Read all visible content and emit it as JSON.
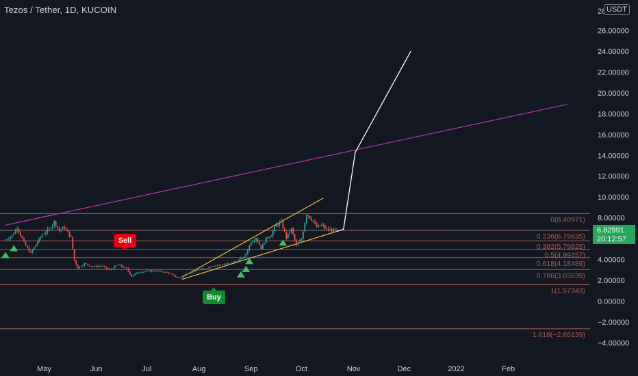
{
  "header": {
    "title": "Tezos / Tether, 1D, KUCOIN",
    "currency": "USDT"
  },
  "price_tag": {
    "price": "6.82991",
    "countdown": "20:12:57"
  },
  "signals": {
    "sell_label": "Sell",
    "buy_label": "Buy"
  },
  "colors": {
    "background": "#131722",
    "up": "#26a69a",
    "down": "#ef5350",
    "grid_label": "#d1d4dc",
    "fib": "#b05a55",
    "trend_purple": "#b53ab5",
    "channel": "#f5c542",
    "projection": "#ffffff",
    "tag_green": "#26a65b",
    "buy_marker": "#3fbf5f"
  },
  "chart_data": {
    "type": "candlestick",
    "title": "Tezos / Tether, 1D, KUCOIN",
    "ylim": [
      -4.7,
      28.5
    ],
    "y_ticks": [
      {
        "value": 26,
        "label": "26.00000"
      },
      {
        "value": 24,
        "label": "24.00000"
      },
      {
        "value": 22,
        "label": "22.00000"
      },
      {
        "value": 20,
        "label": "20.00000"
      },
      {
        "value": 18,
        "label": "18.00000"
      },
      {
        "value": 16,
        "label": "16.00000"
      },
      {
        "value": 14,
        "label": "14.00000"
      },
      {
        "value": 12,
        "label": "12.00000"
      },
      {
        "value": 10,
        "label": "10.00000"
      },
      {
        "value": 8,
        "label": "8.00000"
      },
      {
        "value": 4,
        "label": "4.00000"
      },
      {
        "value": 2,
        "label": "2.00000"
      },
      {
        "value": 0,
        "label": "0.00000"
      },
      {
        "value": -2,
        "label": "−2.00000"
      },
      {
        "value": -4,
        "label": "−4.00000"
      }
    ],
    "y_top_label": "28",
    "x_ticks": [
      {
        "date": "2021-05-01",
        "label": "May"
      },
      {
        "date": "2021-06-01",
        "label": "Jun"
      },
      {
        "date": "2021-07-01",
        "label": "Jul"
      },
      {
        "date": "2021-08-01",
        "label": "Aug"
      },
      {
        "date": "2021-09-01",
        "label": "Sep"
      },
      {
        "date": "2021-10-01",
        "label": "Oct"
      },
      {
        "date": "2021-11-01",
        "label": "Nov"
      },
      {
        "date": "2021-12-01",
        "label": "Dec"
      },
      {
        "date": "2022-01-01",
        "label": "2022"
      },
      {
        "date": "2022-02-01",
        "label": "Feb"
      }
    ],
    "price_series": [
      {
        "date": "2021-04-08",
        "close": 5.9
      },
      {
        "date": "2021-04-12",
        "close": 6.3
      },
      {
        "date": "2021-04-15",
        "close": 7.1
      },
      {
        "date": "2021-04-19",
        "close": 5.6
      },
      {
        "date": "2021-04-23",
        "close": 4.6
      },
      {
        "date": "2021-04-27",
        "close": 5.7
      },
      {
        "date": "2021-04-30",
        "close": 6.4
      },
      {
        "date": "2021-05-04",
        "close": 6.9
      },
      {
        "date": "2021-05-07",
        "close": 7.6
      },
      {
        "date": "2021-05-10",
        "close": 6.8
      },
      {
        "date": "2021-05-13",
        "close": 7.1
      },
      {
        "date": "2021-05-17",
        "close": 6.1
      },
      {
        "date": "2021-05-19",
        "close": 3.9
      },
      {
        "date": "2021-05-21",
        "close": 3.2
      },
      {
        "date": "2021-05-25",
        "close": 3.6
      },
      {
        "date": "2021-05-30",
        "close": 3.3
      },
      {
        "date": "2021-06-04",
        "close": 3.4
      },
      {
        "date": "2021-06-09",
        "close": 3.0
      },
      {
        "date": "2021-06-14",
        "close": 3.5
      },
      {
        "date": "2021-06-19",
        "close": 3.1
      },
      {
        "date": "2021-06-22",
        "close": 2.4
      },
      {
        "date": "2021-06-26",
        "close": 2.8
      },
      {
        "date": "2021-07-02",
        "close": 2.9
      },
      {
        "date": "2021-07-08",
        "close": 2.9
      },
      {
        "date": "2021-07-14",
        "close": 2.7
      },
      {
        "date": "2021-07-20",
        "close": 2.2
      },
      {
        "date": "2021-07-24",
        "close": 2.6
      },
      {
        "date": "2021-07-29",
        "close": 2.9
      },
      {
        "date": "2021-08-04",
        "close": 3.1
      },
      {
        "date": "2021-08-09",
        "close": 3.4
      },
      {
        "date": "2021-08-14",
        "close": 3.5
      },
      {
        "date": "2021-08-19",
        "close": 3.6
      },
      {
        "date": "2021-08-24",
        "close": 3.9
      },
      {
        "date": "2021-08-28",
        "close": 4.2
      },
      {
        "date": "2021-09-01",
        "close": 5.7
      },
      {
        "date": "2021-09-04",
        "close": 6.1
      },
      {
        "date": "2021-09-07",
        "close": 5.1
      },
      {
        "date": "2021-09-10",
        "close": 6.0
      },
      {
        "date": "2021-09-13",
        "close": 6.4
      },
      {
        "date": "2021-09-16",
        "close": 7.3
      },
      {
        "date": "2021-09-19",
        "close": 7.6
      },
      {
        "date": "2021-09-22",
        "close": 6.1
      },
      {
        "date": "2021-09-25",
        "close": 6.9
      },
      {
        "date": "2021-09-28",
        "close": 5.3
      },
      {
        "date": "2021-10-01",
        "close": 6.0
      },
      {
        "date": "2021-10-04",
        "close": 8.4
      },
      {
        "date": "2021-10-07",
        "close": 7.9
      },
      {
        "date": "2021-10-10",
        "close": 7.1
      },
      {
        "date": "2021-10-13",
        "close": 7.3
      },
      {
        "date": "2021-10-16",
        "close": 6.9
      },
      {
        "date": "2021-10-19",
        "close": 6.8
      },
      {
        "date": "2021-10-22",
        "close": 6.83
      }
    ],
    "fib_levels": [
      {
        "ratio": "0",
        "value": 8.40971,
        "label": "0(8.40971)"
      },
      {
        "ratio": "0.236",
        "value": 6.79635,
        "label": "0.236(6.79635)"
      },
      {
        "ratio": "0.382",
        "value": 5.79825,
        "label": "0.382(5.79825)"
      },
      {
        "ratio": "0.5",
        "value": 4.99157,
        "label": "0.5(4.99157)"
      },
      {
        "ratio": "0.618",
        "value": 4.18489,
        "label": "0.618(4.18489)"
      },
      {
        "ratio": "0.786",
        "value": 3.03639,
        "label": "0.786(3.03639)"
      },
      {
        "ratio": "1",
        "value": 1.57343,
        "label": "1(1.57343)"
      },
      {
        "ratio": "1.618",
        "value": -2.65139,
        "label": "1.618(−2.65139)"
      }
    ],
    "trendlines": [
      {
        "name": "purple",
        "from": {
          "date": "2021-04-08",
          "value": 7.3
        },
        "to": {
          "date": "2022-03-08",
          "value": 18.9
        }
      },
      {
        "name": "channel-upper",
        "from": {
          "date": "2021-07-22",
          "value": 2.3
        },
        "to": {
          "date": "2021-10-14",
          "value": 9.9
        }
      },
      {
        "name": "channel-lower",
        "from": {
          "date": "2021-07-22",
          "value": 2.1
        },
        "to": {
          "date": "2021-10-22",
          "value": 6.7
        }
      },
      {
        "name": "dashed-start",
        "from": {
          "date": "2021-04-08",
          "value": 7.3
        },
        "to": {
          "date": "2021-05-06",
          "value": 8.3
        }
      }
    ],
    "projection": [
      {
        "date": "2021-10-22",
        "value": 6.7
      },
      {
        "date": "2021-10-26",
        "value": 6.9
      },
      {
        "date": "2021-11-02",
        "value": 14.3
      },
      {
        "date": "2021-12-05",
        "value": 24.0
      }
    ],
    "current_price": 6.82991,
    "buy_markers": [
      "2021-04-08",
      "2021-04-13",
      "2021-08-26",
      "2021-08-29",
      "2021-08-31",
      "2021-09-20"
    ]
  }
}
